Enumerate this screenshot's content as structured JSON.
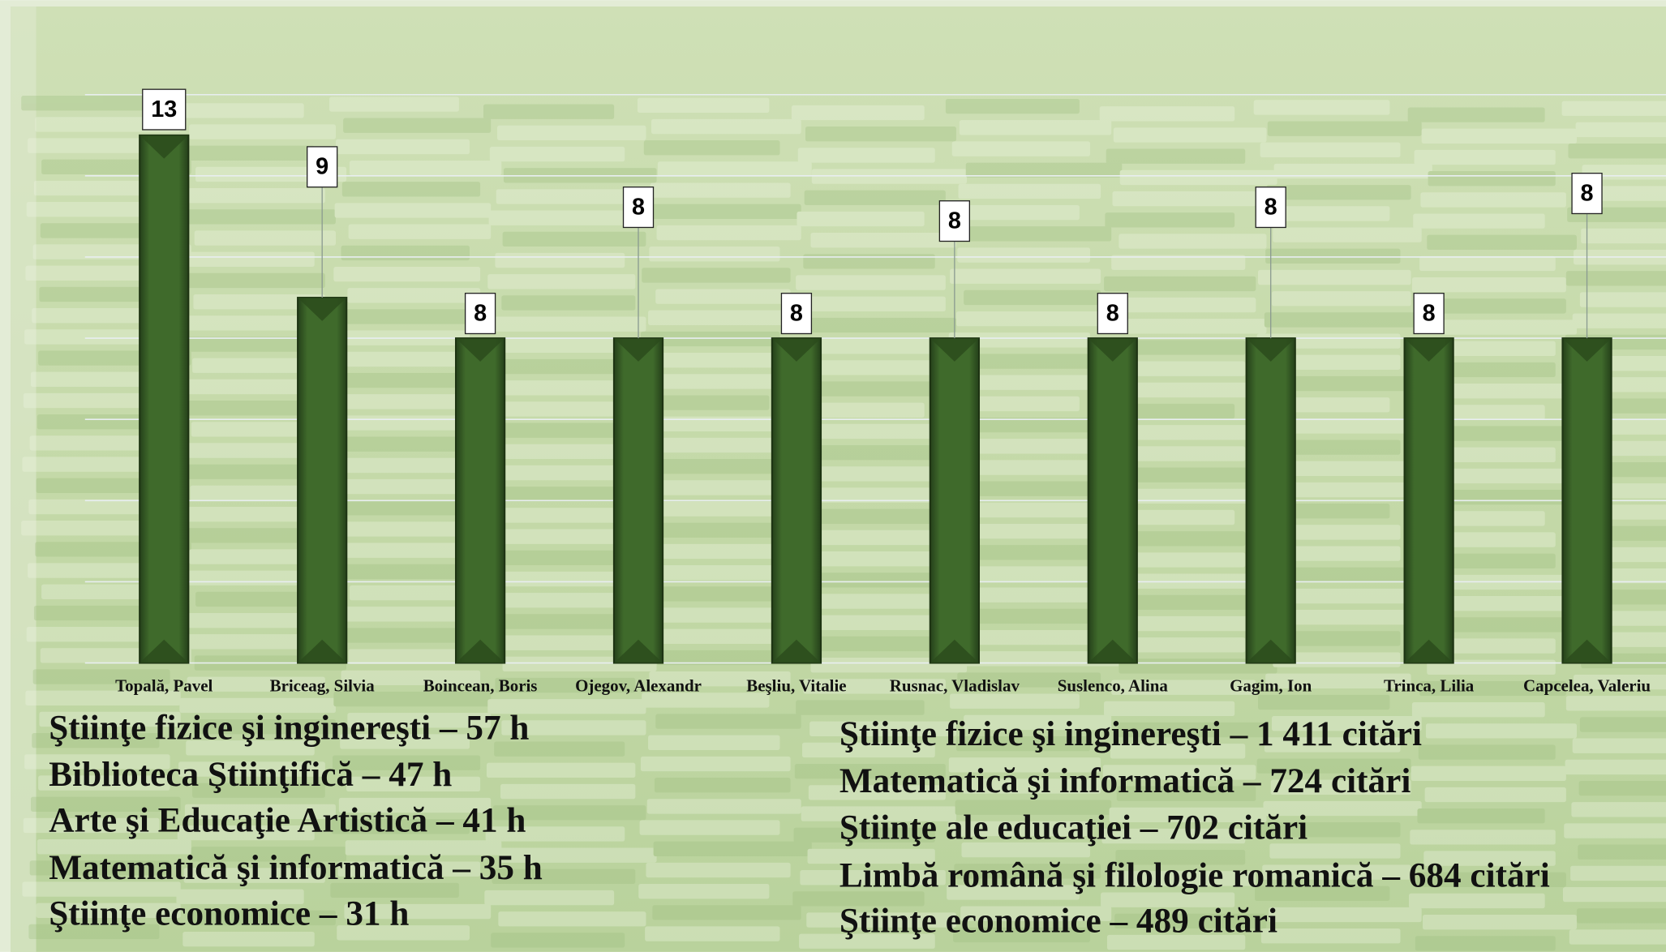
{
  "chart_data": {
    "type": "bar",
    "categories": [
      "Topală, Pavel",
      "Briceag, Silvia",
      "Boincean, Boris",
      "Ojegov, Alexandr",
      "Beşliu, Vitalie",
      "Rusnac, Vladislav",
      "Suslenco, Alina",
      "Gagim, Ion",
      "Trinca, Lilia",
      "Capcelea, Valeriu"
    ],
    "values": [
      13,
      9,
      8,
      8,
      8,
      8,
      8,
      8,
      8,
      8
    ],
    "color": "#3a5f26",
    "ylim": [
      0,
      14
    ],
    "yticks": [
      0,
      2,
      4,
      6,
      8,
      10,
      12,
      14
    ],
    "grid": true
  },
  "lists": [
    [
      "Ştiinţe fizice şi inginereşti – 57 h",
      "Biblioteca Ştiinţifică – 47 h",
      "Arte şi Educaţie Artistică – 41 h",
      "Matematică şi informatică – 35 h",
      "Ştiinţe economice – 31 h"
    ],
    [
      "Ştiinţe fizice şi inginereşti – 1 411 citări",
      "Matematică şi informatică – 724 citări",
      "Ştiinţe ale educaţiei – 702 citări",
      "Limbă română şi filologie romanică – 684 citări",
      "Ştiinţe economice – 489 citări"
    ]
  ]
}
